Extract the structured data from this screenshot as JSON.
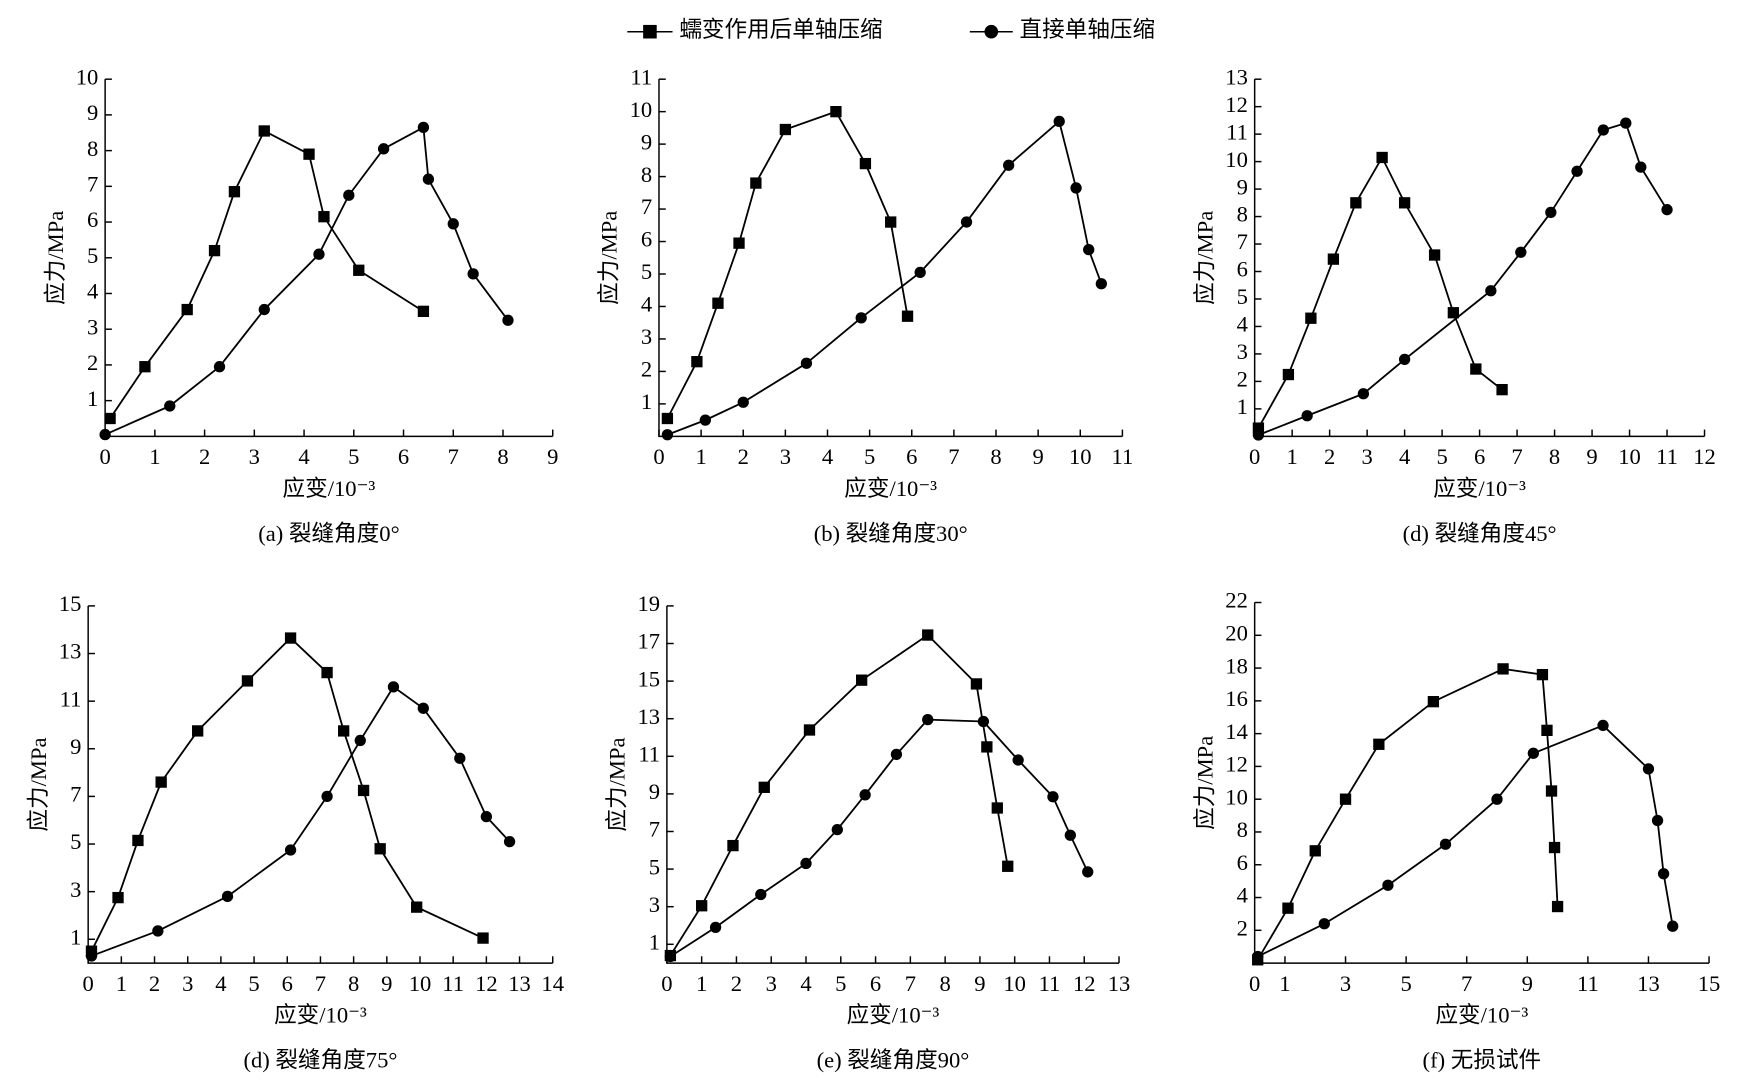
{
  "chart_data": [
    {
      "type": "line",
      "caption": "(a) 裂缝角度0°",
      "xlabel": "应变/10⁻³",
      "ylabel": "应力/MPa",
      "xlim": [
        0,
        9
      ],
      "xticks": [
        0,
        1,
        2,
        3,
        4,
        5,
        6,
        7,
        8,
        9
      ],
      "ylim": [
        0,
        10
      ],
      "yticks": [
        1,
        2,
        3,
        4,
        5,
        6,
        7,
        8,
        9,
        10
      ],
      "series": [
        {
          "name": "蠕变作用后单轴压缩",
          "color": "#000000",
          "marker": "square",
          "x": [
            0.1,
            0.8,
            1.65,
            2.2,
            2.6,
            3.2,
            4.1,
            4.4,
            5.1,
            6.4
          ],
          "values": [
            0.5,
            1.95,
            3.55,
            5.2,
            6.85,
            8.55,
            7.9,
            6.15,
            4.65,
            3.5
          ]
        },
        {
          "name": "直接单轴压缩",
          "color": "#000000",
          "marker": "circle",
          "x": [
            0.0,
            1.3,
            2.3,
            3.2,
            4.3,
            4.9,
            5.6,
            6.4,
            6.5,
            7.0,
            7.4,
            8.1
          ],
          "values": [
            0.05,
            0.85,
            1.95,
            3.55,
            5.1,
            6.75,
            8.05,
            8.65,
            7.2,
            5.95,
            4.55,
            3.25
          ]
        }
      ]
    },
    {
      "type": "line",
      "caption": "(b) 裂缝角度30°",
      "xlabel": "应变/10⁻³",
      "ylabel": "应力/MPa",
      "xlim": [
        0,
        11
      ],
      "xticks": [
        0,
        1,
        2,
        3,
        4,
        5,
        6,
        7,
        8,
        9,
        10,
        11
      ],
      "ylim": [
        0,
        11
      ],
      "yticks": [
        1,
        2,
        3,
        4,
        5,
        6,
        7,
        8,
        9,
        10,
        11
      ],
      "series": [
        {
          "color": "#000000",
          "marker": "square",
          "x": [
            0.2,
            0.9,
            1.4,
            1.9,
            2.3,
            3.0,
            4.2,
            4.9,
            5.5,
            5.9
          ],
          "values": [
            0.55,
            2.3,
            4.1,
            5.95,
            7.8,
            9.45,
            10.0,
            8.4,
            6.6,
            3.7
          ]
        },
        {
          "color": "#000000",
          "marker": "circle",
          "x": [
            0.2,
            1.1,
            2.0,
            3.5,
            4.8,
            6.2,
            7.3,
            8.3,
            9.5,
            9.9,
            10.2,
            10.5
          ],
          "values": [
            0.05,
            0.5,
            1.05,
            2.25,
            3.65,
            5.05,
            6.6,
            8.35,
            9.7,
            7.65,
            5.75,
            4.7
          ]
        }
      ]
    },
    {
      "type": "line",
      "caption": "(d) 裂缝角度45°",
      "xlabel": "应变/10⁻³",
      "ylabel": "应力/MPa",
      "xlim": [
        0,
        12
      ],
      "xticks": [
        0,
        1,
        2,
        3,
        4,
        5,
        6,
        7,
        8,
        9,
        10,
        11,
        12
      ],
      "ylim": [
        0,
        13
      ],
      "yticks": [
        1,
        2,
        3,
        4,
        5,
        6,
        7,
        8,
        9,
        10,
        11,
        12,
        13
      ],
      "series": [
        {
          "color": "#000000",
          "marker": "square",
          "x": [
            0.1,
            0.9,
            1.5,
            2.1,
            2.7,
            3.4,
            4.0,
            4.8,
            5.3,
            5.9,
            6.6
          ],
          "values": [
            0.3,
            2.25,
            4.3,
            6.45,
            8.5,
            10.15,
            8.5,
            6.6,
            4.5,
            2.45,
            1.7
          ]
        },
        {
          "color": "#000000",
          "marker": "circle",
          "x": [
            0.1,
            1.4,
            2.9,
            4.0,
            6.3,
            7.1,
            7.9,
            8.6,
            9.3,
            9.9,
            10.3,
            11.0
          ],
          "values": [
            0.05,
            0.75,
            1.55,
            2.8,
            5.3,
            6.7,
            8.15,
            9.65,
            11.15,
            11.4,
            9.8,
            8.25
          ]
        }
      ]
    },
    {
      "type": "line",
      "caption": "(d) 裂缝角度75°",
      "xlabel": "应变/10⁻³",
      "ylabel": "应力/MPa",
      "xlim": [
        0,
        14
      ],
      "xticks": [
        0,
        1,
        2,
        3,
        4,
        5,
        6,
        7,
        8,
        9,
        10,
        11,
        12,
        13,
        14
      ],
      "ylim": [
        0,
        15
      ],
      "yticks": [
        1,
        3,
        5,
        7,
        9,
        11,
        13,
        15
      ],
      "series": [
        {
          "color": "#000000",
          "marker": "square",
          "x": [
            0.1,
            0.9,
            1.5,
            2.2,
            3.3,
            4.8,
            6.1,
            7.2,
            7.7,
            8.3,
            8.8,
            9.9,
            11.9
          ],
          "values": [
            0.5,
            2.75,
            5.15,
            7.6,
            9.75,
            11.85,
            13.65,
            12.2,
            9.75,
            7.25,
            4.8,
            2.35,
            1.05
          ]
        },
        {
          "color": "#000000",
          "marker": "circle",
          "x": [
            0.1,
            2.1,
            4.2,
            6.1,
            7.2,
            8.2,
            9.2,
            10.1,
            11.2,
            12.0,
            12.7
          ],
          "values": [
            0.3,
            1.35,
            2.8,
            4.75,
            7.0,
            9.35,
            11.6,
            10.7,
            8.6,
            6.15,
            5.1
          ]
        }
      ]
    },
    {
      "type": "line",
      "caption": "(e) 裂缝角度90°",
      "xlabel": "应变/10⁻³",
      "ylabel": "应力/MPa",
      "xlim": [
        0,
        13
      ],
      "xticks": [
        0,
        1,
        2,
        3,
        4,
        5,
        6,
        7,
        8,
        9,
        10,
        11,
        12,
        13
      ],
      "ylim": [
        0,
        19
      ],
      "yticks": [
        1,
        3,
        5,
        7,
        9,
        11,
        13,
        15,
        17,
        19
      ],
      "series": [
        {
          "color": "#000000",
          "marker": "square",
          "x": [
            0.1,
            1.0,
            1.9,
            2.8,
            4.1,
            5.6,
            7.5,
            8.9,
            9.2,
            9.5,
            9.8
          ],
          "values": [
            0.4,
            3.05,
            6.25,
            9.35,
            12.4,
            15.05,
            17.45,
            14.85,
            11.5,
            8.25,
            5.15
          ]
        },
        {
          "color": "#000000",
          "marker": "circle",
          "x": [
            0.1,
            1.4,
            2.7,
            4.0,
            4.9,
            5.7,
            6.6,
            7.5,
            9.1,
            10.1,
            11.1,
            11.6,
            12.1
          ],
          "values": [
            0.35,
            1.9,
            3.65,
            5.3,
            7.1,
            8.95,
            11.1,
            12.95,
            12.85,
            10.8,
            8.85,
            6.8,
            4.85
          ]
        }
      ]
    },
    {
      "type": "line",
      "caption": "(f) 无损试件",
      "xlabel": "应变/10⁻³",
      "ylabel": "应力/MPa",
      "xlim": [
        0,
        15
      ],
      "xticks": [
        0,
        1,
        3,
        5,
        7,
        9,
        11,
        13,
        15
      ],
      "ylim": [
        0,
        22
      ],
      "yticks": [
        2,
        4,
        6,
        8,
        10,
        12,
        14,
        16,
        18,
        20,
        22
      ],
      "series": [
        {
          "color": "#000000",
          "marker": "square",
          "x": [
            0.1,
            1.1,
            2.0,
            3.0,
            4.1,
            5.9,
            8.2,
            9.5,
            9.65,
            9.8,
            9.9,
            10.0
          ],
          "values": [
            0.2,
            3.35,
            6.85,
            10.0,
            13.35,
            15.95,
            17.95,
            17.6,
            14.2,
            10.5,
            7.05,
            3.45
          ]
        },
        {
          "color": "#000000",
          "marker": "circle",
          "x": [
            0.1,
            2.3,
            4.4,
            6.3,
            8.0,
            9.2,
            11.5,
            13.0,
            13.3,
            13.5,
            13.8
          ],
          "values": [
            0.4,
            2.4,
            4.75,
            7.25,
            10.0,
            12.8,
            14.5,
            11.85,
            8.7,
            5.45,
            2.25
          ]
        }
      ]
    }
  ]
}
